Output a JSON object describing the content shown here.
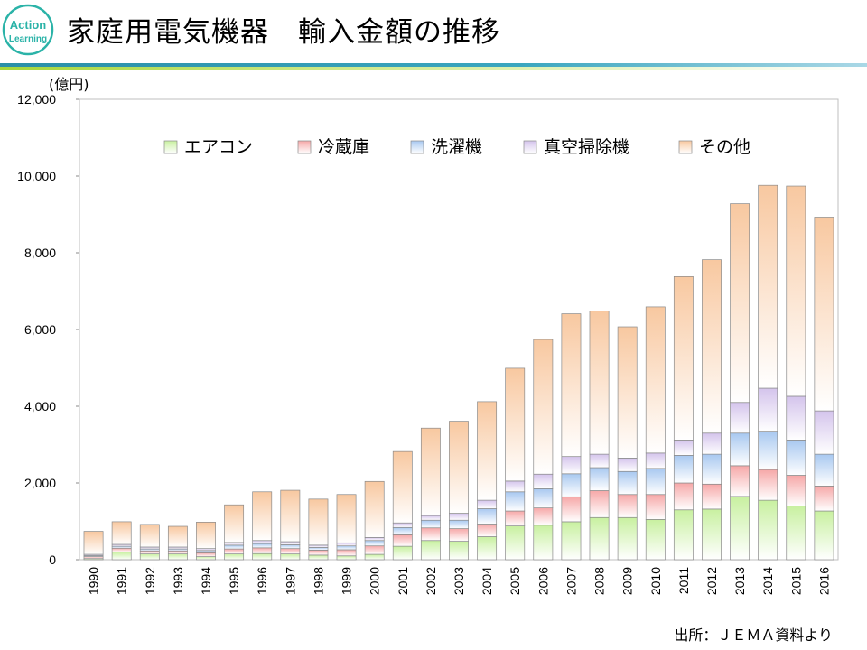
{
  "logo": {
    "line1": "Action",
    "line2": "Learning",
    "color": "#2bb3a8"
  },
  "title": "家庭用電気機器　輸入金額の推移",
  "unit_label": "(億円)",
  "source": "出所：ＪＥＭＡ資料より",
  "chart_data": {
    "type": "bar",
    "stacked": true,
    "title": "家庭用電気機器　輸入金額の推移",
    "ylabel": "(億円)",
    "xlabel": "",
    "ylim": [
      0,
      12000
    ],
    "yticks": [
      0,
      2000,
      4000,
      6000,
      8000,
      10000,
      12000
    ],
    "ytick_labels": [
      "0",
      "2,000",
      "4,000",
      "6,000",
      "8,000",
      "10,000",
      "12,000"
    ],
    "legend_position": "top",
    "categories": [
      "1990",
      "1991",
      "1992",
      "1993",
      "1994",
      "1995",
      "1996",
      "1997",
      "1998",
      "1999",
      "2000",
      "2001",
      "2002",
      "2003",
      "2004",
      "2005",
      "2006",
      "2007",
      "2008",
      "2009",
      "2010",
      "2011",
      "2012",
      "2013",
      "2014",
      "2015",
      "2016"
    ],
    "series": [
      {
        "name": "エアコン",
        "color": "#c8f0a0",
        "values": [
          30,
          200,
          150,
          150,
          80,
          150,
          160,
          150,
          120,
          100,
          140,
          350,
          500,
          480,
          600,
          880,
          900,
          990,
          1100,
          1100,
          1050,
          1300,
          1320,
          1650,
          1550,
          1400,
          1270
        ]
      },
      {
        "name": "冷蔵庫",
        "color": "#f6a8a8",
        "values": [
          50,
          100,
          80,
          80,
          100,
          130,
          150,
          140,
          130,
          160,
          220,
          300,
          330,
          330,
          330,
          390,
          450,
          650,
          700,
          600,
          650,
          700,
          650,
          800,
          800,
          800,
          650
        ]
      },
      {
        "name": "洗濯機",
        "color": "#a8c8f0",
        "values": [
          30,
          50,
          50,
          50,
          60,
          100,
          110,
          100,
          70,
          100,
          140,
          190,
          200,
          220,
          400,
          500,
          500,
          600,
          600,
          600,
          680,
          720,
          780,
          850,
          1000,
          920,
          830
        ]
      },
      {
        "name": "真空掃除機",
        "color": "#d4c4ec",
        "values": [
          30,
          50,
          50,
          50,
          50,
          70,
          80,
          80,
          60,
          80,
          80,
          120,
          120,
          180,
          220,
          280,
          380,
          450,
          350,
          350,
          400,
          400,
          550,
          800,
          1120,
          1140,
          1130
        ]
      },
      {
        "name": "その他",
        "color": "#f8c8a0",
        "values": [
          600,
          590,
          590,
          540,
          690,
          980,
          1270,
          1340,
          1200,
          1260,
          1460,
          1860,
          2280,
          2400,
          2570,
          2940,
          3510,
          3720,
          3730,
          3420,
          3810,
          4260,
          4520,
          5180,
          5290,
          5480,
          5050
        ]
      }
    ]
  }
}
